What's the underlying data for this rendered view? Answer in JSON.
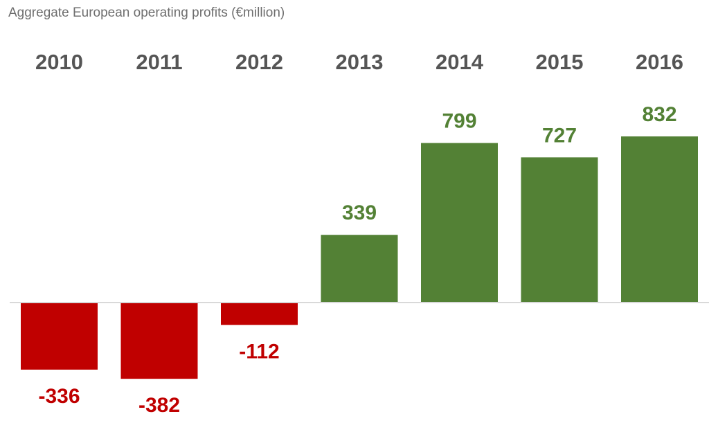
{
  "chart_data": {
    "type": "bar",
    "title": "Aggregate European operating profits (€million)",
    "categories": [
      "2010",
      "2011",
      "2012",
      "2013",
      "2014",
      "2015",
      "2016"
    ],
    "values": [
      -336,
      -382,
      -112,
      339,
      799,
      727,
      832
    ],
    "data_labels": [
      "-336",
      "-382",
      "-112",
      "339",
      "799",
      "727",
      "832"
    ],
    "xlabel": "",
    "ylabel": "",
    "ylim": [
      -450,
      1000
    ],
    "category_axis_position": "top",
    "grid": false,
    "legend": "none",
    "colors": {
      "positive": "#538135",
      "negative": "#c00000",
      "tick_label": "#555555",
      "baseline": "#d9d9d9",
      "title": "#6e6e6e"
    }
  }
}
